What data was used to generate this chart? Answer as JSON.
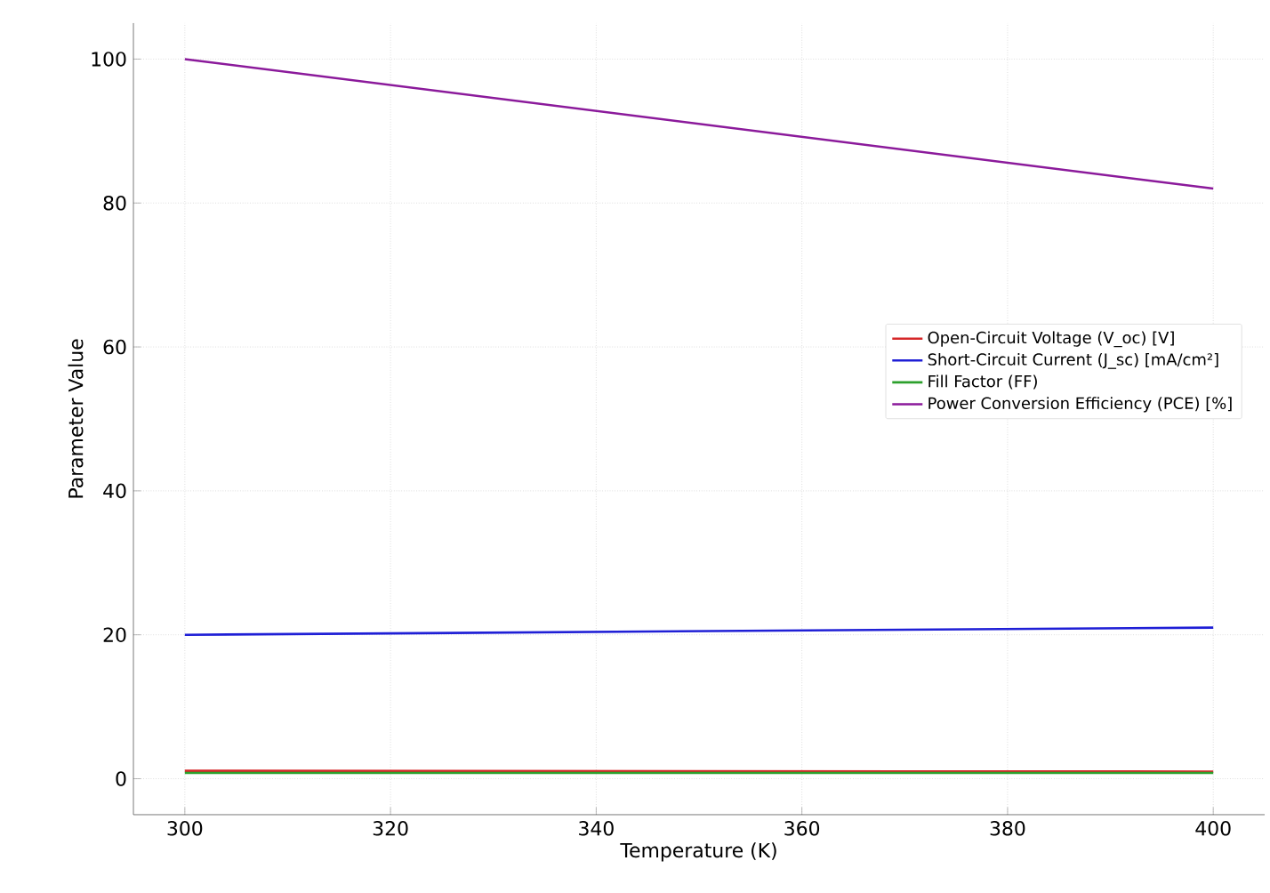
{
  "chart_data": {
    "type": "line",
    "xlabel": "Temperature (K)",
    "ylabel": "Parameter Value",
    "x": [
      300,
      400
    ],
    "series": [
      {
        "name": "Open-Circuit Voltage (V_oc) [V]",
        "color": "#d62728",
        "values": [
          1.1,
          1.0
        ]
      },
      {
        "name": "Short-Circuit Current (J_sc) [mA/cm²]",
        "color": "#1f1fd6",
        "values": [
          20,
          21
        ]
      },
      {
        "name": "Fill Factor (FF)",
        "color": "#2ca02c",
        "values": [
          0.8,
          0.8
        ]
      },
      {
        "name": "Power Conversion Efficiency (PCE) [%]",
        "color": "#8b1a9b",
        "values": [
          100,
          82
        ]
      }
    ],
    "xlim": [
      295,
      405
    ],
    "ylim": [
      -5,
      105
    ],
    "xticks": [
      300,
      320,
      340,
      360,
      380,
      400
    ],
    "yticks": [
      0,
      20,
      40,
      60,
      80,
      100
    ],
    "grid": true,
    "legend": "right",
    "marker": "none",
    "line_style": "solid"
  }
}
